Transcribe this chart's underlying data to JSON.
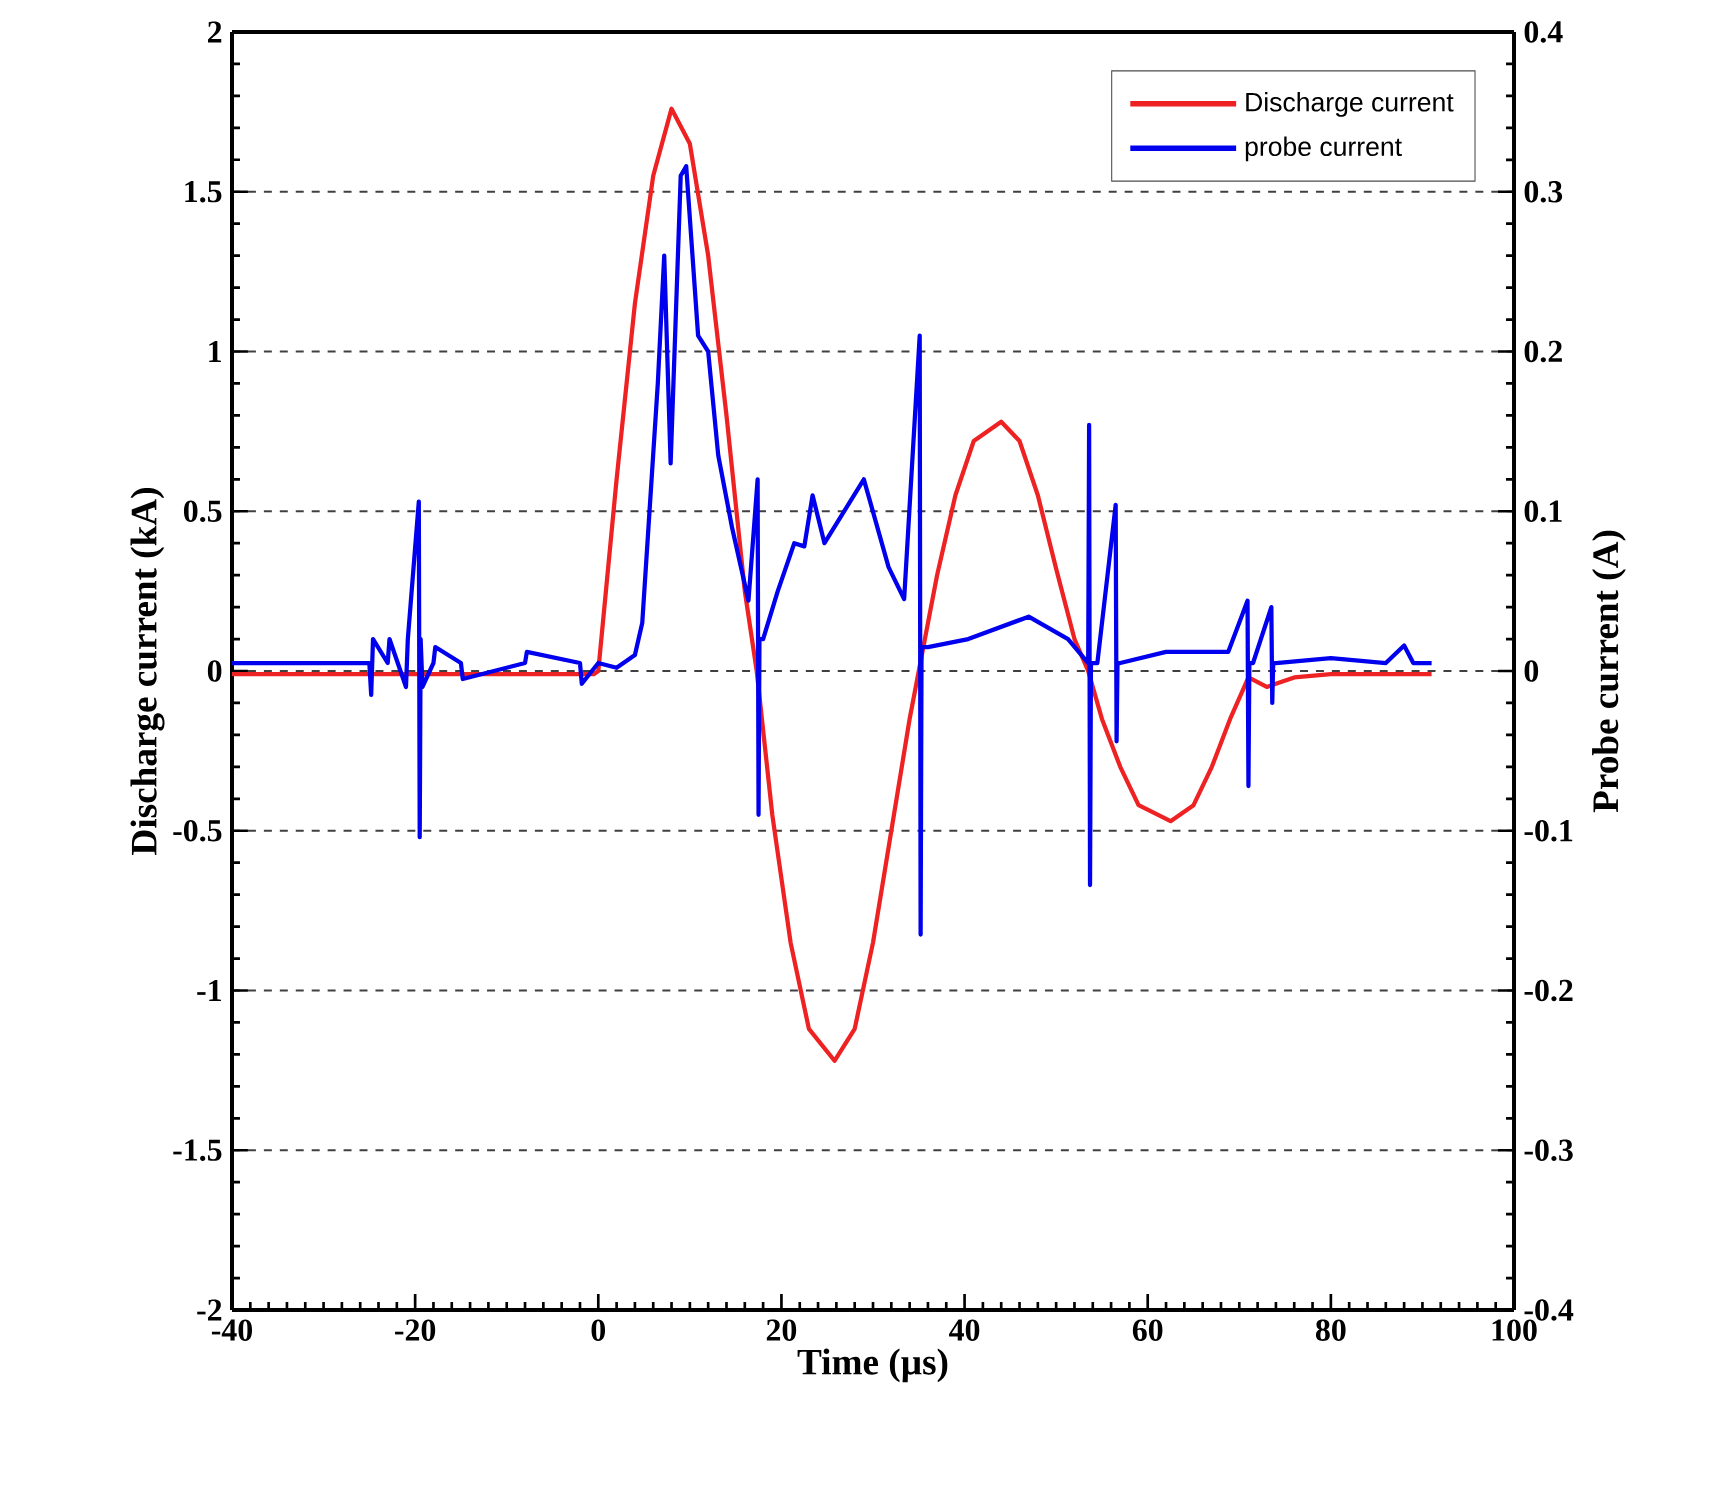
{
  "chart_data": {
    "type": "line",
    "xlabel": "Time (µs)",
    "ylabel": "Discharge current (kA)",
    "y2label": "Probe current (A)",
    "xlim": [
      -40,
      100
    ],
    "xticks": [
      -40,
      -20,
      0,
      20,
      40,
      60,
      80,
      100
    ],
    "ylim": [
      -2,
      2
    ],
    "yticks": [
      -2,
      -1.5,
      -1,
      -0.5,
      0,
      0.5,
      1,
      1.5,
      2
    ],
    "y2lim": [
      -0.4,
      0.4
    ],
    "y2ticks": [
      -0.4,
      -0.3,
      -0.2,
      -0.1,
      0,
      0.1,
      0.2,
      0.3,
      0.4
    ],
    "grid": "y",
    "legend": "top right",
    "line_style": "solid",
    "marker": "none",
    "series": [
      {
        "name": "Discharge current",
        "color": "#ee2222",
        "x": [
          -40,
          -0.5,
          0,
          2,
          4,
          6,
          8,
          10,
          12,
          14,
          16,
          17.3,
          19,
          21,
          23,
          25.8,
          28,
          30,
          32,
          34,
          35,
          37,
          39,
          41,
          44,
          46,
          48,
          50,
          52,
          53.5,
          55,
          57,
          59,
          62.5,
          65,
          67,
          69,
          71,
          73,
          76,
          80,
          91
        ],
        "values": [
          -0.01,
          -0.01,
          0,
          0.6,
          1.15,
          1.55,
          1.76,
          1.65,
          1.3,
          0.8,
          0.25,
          0,
          -0.45,
          -0.85,
          -1.12,
          -1.22,
          -1.12,
          -0.85,
          -0.5,
          -0.15,
          0,
          0.3,
          0.55,
          0.72,
          0.78,
          0.72,
          0.55,
          0.32,
          0.1,
          0,
          -0.15,
          -0.3,
          -0.42,
          -0.47,
          -0.42,
          -0.3,
          -0.15,
          -0.02,
          -0.05,
          -0.02,
          -0.01,
          -0.01
        ]
      },
      {
        "name": "probe current",
        "color": "#0000ee",
        "axis": "y2",
        "x": [
          -40,
          -25,
          -24.8,
          -24.6,
          -23,
          -22.8,
          -21,
          -20.8,
          -19.6,
          -19.5,
          -19.4,
          -19.2,
          -18,
          -17.8,
          -15,
          -14.8,
          -8,
          -7.8,
          -2,
          -1.8,
          0,
          2,
          4,
          4.8,
          6.5,
          7.2,
          7.9,
          9,
          9.6,
          10.9,
          12,
          13.1,
          14.6,
          16.4,
          17.4,
          17.5,
          17.6,
          18,
          19.6,
          21.4,
          22.5,
          23.4,
          24.7,
          29,
          31.7,
          33.4,
          35.1,
          35.2,
          35.3,
          36,
          40.4,
          47,
          51.3,
          53.5,
          53.6,
          53.7,
          53.8,
          54.5,
          56.5,
          56.6,
          56.7,
          57,
          62,
          68.8,
          70.9,
          71,
          71.1,
          71.5,
          73.5,
          73.6,
          73.7,
          74,
          80,
          86,
          88,
          89,
          91
        ],
        "values": [
          0.005,
          0.005,
          -0.015,
          0.02,
          0.005,
          0.02,
          -0.01,
          0.02,
          0.106,
          -0.104,
          0.02,
          -0.01,
          0.005,
          0.015,
          0.005,
          -0.005,
          0.005,
          0.012,
          0.005,
          -0.008,
          0.005,
          0.002,
          0.01,
          0.03,
          0.18,
          0.26,
          0.13,
          0.31,
          0.316,
          0.21,
          0.2,
          0.135,
          0.09,
          0.044,
          0.12,
          -0.09,
          0.02,
          0.02,
          0.05,
          0.08,
          0.078,
          0.11,
          0.08,
          0.12,
          0.065,
          0.045,
          0.21,
          -0.165,
          0.015,
          0.015,
          0.02,
          0.034,
          0.02,
          0.005,
          0.154,
          -0.134,
          0.005,
          0.005,
          0.104,
          -0.044,
          0.005,
          0.005,
          0.012,
          0.012,
          0.044,
          -0.072,
          0.005,
          0.005,
          0.04,
          -0.02,
          0.005,
          0.005,
          0.008,
          0.005,
          0.016,
          0.005,
          0.005
        ]
      }
    ]
  }
}
